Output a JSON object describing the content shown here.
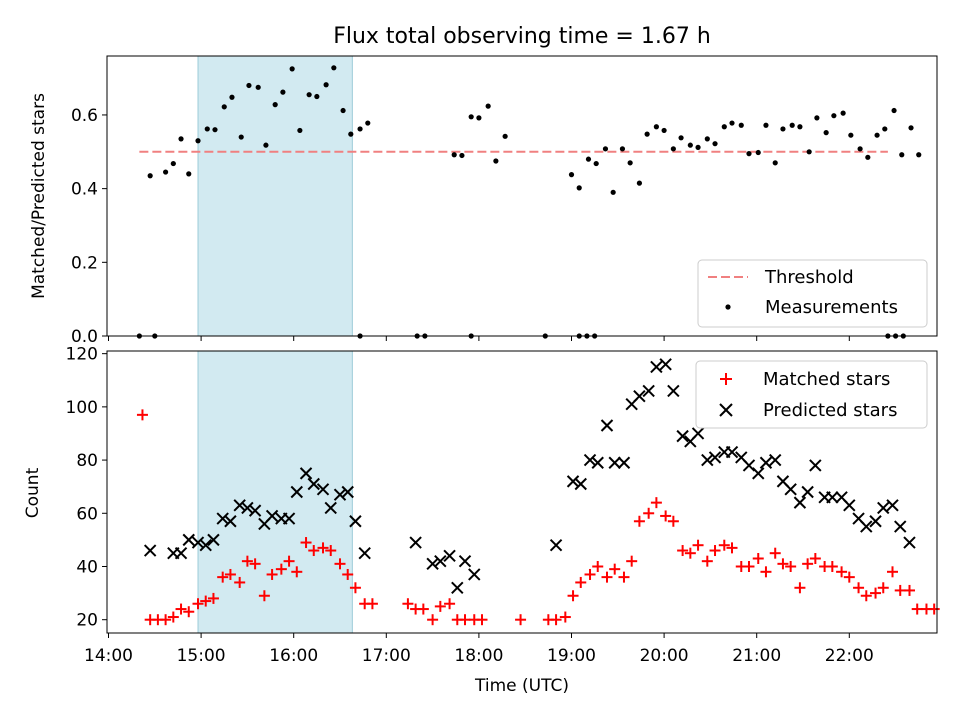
{
  "chart_data": [
    {
      "type": "scatter",
      "title": "Flux total observing time = 1.67 h",
      "xlabel": "",
      "ylabel": "Matched/Predicted stars",
      "xlim": [
        "14:00",
        "23:00"
      ],
      "ylim": [
        0,
        0.76
      ],
      "yticks": [
        "0.0",
        "0.2",
        "0.4",
        "0.6"
      ],
      "shaded_interval": [
        "14:58",
        "16:38"
      ],
      "legend": {
        "placement": "lower-right",
        "entries": [
          "Threshold",
          "Measurements"
        ]
      },
      "threshold": {
        "name": "Threshold",
        "value": 0.5,
        "x_range": [
          "14:20",
          "22:25"
        ],
        "color": "#f08080"
      },
      "series": [
        {
          "name": "Measurements",
          "color": "#000000",
          "points": [
            [
              "14:20",
              0
            ],
            [
              "14:30",
              0
            ],
            [
              "14:27",
              0.435
            ],
            [
              "14:37",
              0.445
            ],
            [
              "14:42",
              0.468
            ],
            [
              "14:47",
              0.535
            ],
            [
              "14:52",
              0.44
            ],
            [
              "14:58",
              0.53
            ],
            [
              "15:04",
              0.562
            ],
            [
              "15:09",
              0.56
            ],
            [
              "15:15",
              0.622
            ],
            [
              "15:20",
              0.648
            ],
            [
              "15:26",
              0.54
            ],
            [
              "15:31",
              0.68
            ],
            [
              "15:37",
              0.675
            ],
            [
              "15:42",
              0.518
            ],
            [
              "15:48",
              0.628
            ],
            [
              "15:53",
              0.662
            ],
            [
              "15:59",
              0.725
            ],
            [
              "16:04",
              0.558
            ],
            [
              "16:10",
              0.655
            ],
            [
              "16:15",
              0.65
            ],
            [
              "16:21",
              0.682
            ],
            [
              "16:26",
              0.728
            ],
            [
              "16:32",
              0.612
            ],
            [
              "16:37",
              0.548
            ],
            [
              "16:43",
              0.562
            ],
            [
              "16:48",
              0.578
            ],
            [
              "16:43",
              0
            ],
            [
              "17:20",
              0
            ],
            [
              "17:25",
              0
            ],
            [
              "17:55",
              0
            ],
            [
              "18:43",
              0
            ],
            [
              "19:05",
              0
            ],
            [
              "19:10",
              0
            ],
            [
              "19:15",
              0
            ],
            [
              "17:44",
              0.492
            ],
            [
              "17:49",
              0.49
            ],
            [
              "17:55",
              0.595
            ],
            [
              "18:00",
              0.592
            ],
            [
              "18:06",
              0.624
            ],
            [
              "18:11",
              0.475
            ],
            [
              "18:17",
              0.542
            ],
            [
              "19:00",
              0.438
            ],
            [
              "19:05",
              0.402
            ],
            [
              "19:11",
              0.48
            ],
            [
              "19:16",
              0.468
            ],
            [
              "19:22",
              0.508
            ],
            [
              "19:27",
              0.39
            ],
            [
              "19:33",
              0.508
            ],
            [
              "19:38",
              0.47
            ],
            [
              "19:44",
              0.415
            ],
            [
              "19:49",
              0.548
            ],
            [
              "19:55",
              0.568
            ],
            [
              "20:00",
              0.558
            ],
            [
              "20:06",
              0.508
            ],
            [
              "20:11",
              0.538
            ],
            [
              "20:17",
              0.518
            ],
            [
              "20:22",
              0.512
            ],
            [
              "20:28",
              0.535
            ],
            [
              "20:33",
              0.522
            ],
            [
              "20:39",
              0.568
            ],
            [
              "20:44",
              0.578
            ],
            [
              "20:50",
              0.572
            ],
            [
              "20:55",
              0.495
            ],
            [
              "21:01",
              0.498
            ],
            [
              "21:06",
              0.572
            ],
            [
              "21:12",
              0.47
            ],
            [
              "21:17",
              0.562
            ],
            [
              "21:23",
              0.572
            ],
            [
              "21:28",
              0.568
            ],
            [
              "21:34",
              0.5
            ],
            [
              "21:39",
              0.592
            ],
            [
              "21:45",
              0.552
            ],
            [
              "21:50",
              0.598
            ],
            [
              "21:56",
              0.605
            ],
            [
              "22:01",
              0.545
            ],
            [
              "22:07",
              0.508
            ],
            [
              "22:12",
              0.485
            ],
            [
              "22:18",
              0.545
            ],
            [
              "22:23",
              0.562
            ],
            [
              "22:29",
              0.612
            ],
            [
              "22:34",
              0.492
            ],
            [
              "22:40",
              0.565
            ],
            [
              "22:45",
              0.492
            ],
            [
              "22:25",
              0
            ],
            [
              "22:30",
              0
            ],
            [
              "22:35",
              0
            ]
          ]
        }
      ]
    },
    {
      "type": "scatter",
      "title": "",
      "xlabel": "Time (UTC)",
      "ylabel": "Count",
      "xlim": [
        "14:00",
        "23:00"
      ],
      "ylim": [
        15,
        121
      ],
      "yticks": [
        "20",
        "40",
        "60",
        "80",
        "100",
        "120"
      ],
      "xticks": [
        "14:00",
        "15:00",
        "16:00",
        "17:00",
        "18:00",
        "19:00",
        "20:00",
        "21:00",
        "22:00"
      ],
      "shaded_interval": [
        "14:58",
        "16:38"
      ],
      "legend": {
        "placement": "top-right",
        "entries": [
          "Matched stars",
          "Predicted stars"
        ]
      },
      "series": [
        {
          "name": "Matched stars",
          "marker": "plus",
          "color": "#ff0000",
          "points": [
            [
              "14:22",
              97
            ],
            [
              "14:27",
              20
            ],
            [
              "14:32",
              20
            ],
            [
              "14:37",
              20
            ],
            [
              "14:42",
              21
            ],
            [
              "14:47",
              24
            ],
            [
              "14:52",
              23
            ],
            [
              "14:58",
              26
            ],
            [
              "15:03",
              27
            ],
            [
              "15:08",
              28
            ],
            [
              "15:14",
              36
            ],
            [
              "15:19",
              37
            ],
            [
              "15:25",
              34
            ],
            [
              "15:30",
              42
            ],
            [
              "15:35",
              41
            ],
            [
              "15:41",
              29
            ],
            [
              "15:46",
              37
            ],
            [
              "15:52",
              39
            ],
            [
              "15:57",
              42
            ],
            [
              "16:02",
              38
            ],
            [
              "16:08",
              49
            ],
            [
              "16:13",
              46
            ],
            [
              "16:19",
              47
            ],
            [
              "16:24",
              46
            ],
            [
              "16:30",
              41
            ],
            [
              "16:35",
              37
            ],
            [
              "16:40",
              32
            ],
            [
              "16:46",
              26
            ],
            [
              "16:51",
              26
            ],
            [
              "17:14",
              26
            ],
            [
              "17:19",
              24
            ],
            [
              "17:24",
              24
            ],
            [
              "17:30",
              20
            ],
            [
              "17:35",
              25
            ],
            [
              "17:41",
              26
            ],
            [
              "17:46",
              20
            ],
            [
              "17:51",
              20
            ],
            [
              "17:57",
              20
            ],
            [
              "18:02",
              20
            ],
            [
              "18:27",
              20
            ],
            [
              "18:45",
              20
            ],
            [
              "18:50",
              20
            ],
            [
              "18:56",
              21
            ],
            [
              "19:01",
              29
            ],
            [
              "19:06",
              34
            ],
            [
              "19:12",
              37
            ],
            [
              "19:17",
              40
            ],
            [
              "19:23",
              36
            ],
            [
              "19:28",
              39
            ],
            [
              "19:34",
              36
            ],
            [
              "19:39",
              42
            ],
            [
              "19:44",
              57
            ],
            [
              "19:50",
              60
            ],
            [
              "19:55",
              64
            ],
            [
              "20:01",
              59
            ],
            [
              "20:06",
              57
            ],
            [
              "20:12",
              46
            ],
            [
              "20:17",
              45
            ],
            [
              "20:22",
              48
            ],
            [
              "20:28",
              42
            ],
            [
              "20:33",
              46
            ],
            [
              "20:39",
              48
            ],
            [
              "20:44",
              47
            ],
            [
              "20:50",
              40
            ],
            [
              "20:55",
              40
            ],
            [
              "21:01",
              43
            ],
            [
              "21:06",
              38
            ],
            [
              "21:12",
              45
            ],
            [
              "21:17",
              41
            ],
            [
              "21:22",
              40
            ],
            [
              "21:28",
              32
            ],
            [
              "21:33",
              41
            ],
            [
              "21:38",
              43
            ],
            [
              "21:44",
              40
            ],
            [
              "21:49",
              40
            ],
            [
              "21:55",
              38
            ],
            [
              "22:00",
              36
            ],
            [
              "22:06",
              32
            ],
            [
              "22:11",
              29
            ],
            [
              "22:17",
              30
            ],
            [
              "22:22",
              32
            ],
            [
              "22:28",
              38
            ],
            [
              "22:33",
              31
            ],
            [
              "22:39",
              31
            ],
            [
              "22:44",
              24
            ],
            [
              "22:50",
              24
            ],
            [
              "22:55",
              24
            ]
          ]
        },
        {
          "name": "Predicted stars",
          "marker": "x",
          "color": "#000000",
          "points": [
            [
              "14:27",
              46
            ],
            [
              "14:42",
              45
            ],
            [
              "14:47",
              45
            ],
            [
              "14:52",
              50
            ],
            [
              "14:58",
              49
            ],
            [
              "15:03",
              48
            ],
            [
              "15:08",
              50
            ],
            [
              "15:14",
              58
            ],
            [
              "15:19",
              57
            ],
            [
              "15:25",
              63
            ],
            [
              "15:30",
              62
            ],
            [
              "15:35",
              61
            ],
            [
              "15:41",
              56
            ],
            [
              "15:46",
              59
            ],
            [
              "15:52",
              58
            ],
            [
              "15:57",
              58
            ],
            [
              "16:02",
              68
            ],
            [
              "16:08",
              75
            ],
            [
              "16:13",
              71
            ],
            [
              "16:19",
              69
            ],
            [
              "16:24",
              62
            ],
            [
              "16:30",
              67
            ],
            [
              "16:35",
              68
            ],
            [
              "16:40",
              57
            ],
            [
              "16:46",
              45
            ],
            [
              "17:19",
              49
            ],
            [
              "17:30",
              41
            ],
            [
              "17:35",
              42
            ],
            [
              "17:41",
              44
            ],
            [
              "17:46",
              32
            ],
            [
              "17:51",
              42
            ],
            [
              "17:57",
              37
            ],
            [
              "18:50",
              48
            ],
            [
              "19:01",
              72
            ],
            [
              "19:06",
              71
            ],
            [
              "19:12",
              80
            ],
            [
              "19:17",
              79
            ],
            [
              "19:23",
              93
            ],
            [
              "19:28",
              79
            ],
            [
              "19:34",
              79
            ],
            [
              "19:39",
              101
            ],
            [
              "19:44",
              104
            ],
            [
              "19:50",
              106
            ],
            [
              "19:55",
              115
            ],
            [
              "20:01",
              116
            ],
            [
              "20:06",
              106
            ],
            [
              "20:12",
              89
            ],
            [
              "20:17",
              87
            ],
            [
              "20:22",
              90
            ],
            [
              "20:28",
              80
            ],
            [
              "20:33",
              81
            ],
            [
              "20:39",
              83
            ],
            [
              "20:44",
              83
            ],
            [
              "20:50",
              81
            ],
            [
              "20:55",
              78
            ],
            [
              "21:01",
              75
            ],
            [
              "21:06",
              79
            ],
            [
              "21:12",
              80
            ],
            [
              "21:17",
              72
            ],
            [
              "21:22",
              69
            ],
            [
              "21:28",
              64
            ],
            [
              "21:33",
              68
            ],
            [
              "21:38",
              78
            ],
            [
              "21:44",
              66
            ],
            [
              "21:49",
              66
            ],
            [
              "21:55",
              66
            ],
            [
              "22:00",
              63
            ],
            [
              "22:06",
              58
            ],
            [
              "22:11",
              55
            ],
            [
              "22:17",
              57
            ],
            [
              "22:22",
              62
            ],
            [
              "22:28",
              63
            ],
            [
              "22:33",
              55
            ],
            [
              "22:39",
              49
            ]
          ]
        }
      ]
    }
  ]
}
